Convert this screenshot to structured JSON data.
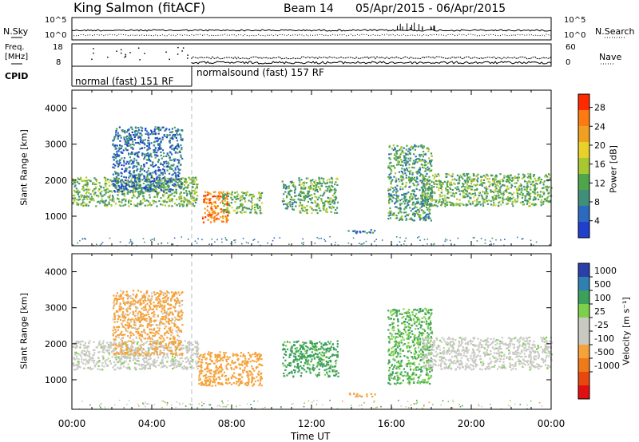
{
  "header": {
    "station": "King Salmon (fitACF)",
    "beam": "Beam 14",
    "date_range": "05/Apr/2015 - 06/Apr/2015"
  },
  "top_strip": {
    "left_label": "N.Sky",
    "right_label": "N.Search",
    "noise_ticks": [
      "10^5",
      "10^0"
    ],
    "freq_label_1": "Freq.",
    "freq_label_2": "[MHz]",
    "freq_ticks": [
      "18",
      "8"
    ],
    "nave_label": "Nave",
    "nave_ticks": [
      "60",
      "0"
    ],
    "cpid_label": "CPID",
    "cpid_modes": [
      "normal (fast) 151 RF",
      "normalsound (fast) 157 RF"
    ]
  },
  "colors": {
    "power_scale": [
      "#1f3fcc",
      "#2b6abf",
      "#3f8f7a",
      "#4fa54a",
      "#a8c832",
      "#e8d22a",
      "#f0a020",
      "#ff7a10",
      "#ff2a00"
    ],
    "velocity_scale": [
      "#2a3fa8",
      "#2f7fb0",
      "#3aa05a",
      "#7dd04a",
      "#c9c9c4",
      "#c9c9c4",
      "#f5a23a",
      "#f07a18",
      "#e84810",
      "#e01010"
    ]
  },
  "chart_data": [
    {
      "type": "heatmap",
      "panel": "power",
      "ylabel": "Slant Range [km]",
      "y_ticks": [
        1000,
        2000,
        3000,
        4000
      ],
      "ylim": [
        180,
        4500
      ],
      "x_ticks": [
        "00:00",
        "04:00",
        "08:00",
        "12:00",
        "16:00",
        "20:00",
        "00:00"
      ],
      "xlim_hours": [
        0,
        24
      ],
      "colorbar_label": "Power [dB]",
      "colorbar_ticks": [
        "4",
        "8",
        "12",
        "16",
        "20",
        "24",
        "28"
      ],
      "cpid_change_hour": 6.0,
      "echo_regions": [
        {
          "t": [
            0.0,
            6.3
          ],
          "range_km": [
            1300,
            2100
          ],
          "power_db": 12
        },
        {
          "t": [
            2.0,
            5.5
          ],
          "range_km": [
            1700,
            3500
          ],
          "power_db": 6
        },
        {
          "t": [
            6.5,
            7.8
          ],
          "range_km": [
            850,
            1700
          ],
          "power_db": 24
        },
        {
          "t": [
            7.5,
            9.5
          ],
          "range_km": [
            1100,
            1700
          ],
          "power_db": 12
        },
        {
          "t": [
            10.5,
            11.2
          ],
          "range_km": [
            1200,
            2000
          ],
          "power_db": 10
        },
        {
          "t": [
            11.3,
            13.3
          ],
          "range_km": [
            1100,
            2100
          ],
          "power_db": 12
        },
        {
          "t": [
            13.8,
            15.2
          ],
          "range_km": [
            550,
            650
          ],
          "power_db": 6
        },
        {
          "t": [
            15.8,
            18.0
          ],
          "range_km": [
            900,
            3000
          ],
          "power_db": 10
        },
        {
          "t": [
            17.5,
            24.0
          ],
          "range_km": [
            1300,
            2200
          ],
          "power_db": 12
        }
      ]
    },
    {
      "type": "heatmap",
      "panel": "velocity",
      "ylabel": "Slant Range [km]",
      "y_ticks": [
        1000,
        2000,
        3000,
        4000
      ],
      "ylim": [
        180,
        4500
      ],
      "x_ticks": [
        "00:00",
        "04:00",
        "08:00",
        "12:00",
        "16:00",
        "20:00",
        "00:00"
      ],
      "xlim_hours": [
        0,
        24
      ],
      "xlabel": "Time UT",
      "colorbar_label": "Velocity [m s⁻¹]",
      "colorbar_ticks": [
        "1000",
        "500",
        "100",
        "25",
        "-25",
        "-100",
        "-500",
        "-1000"
      ],
      "echo_regions": [
        {
          "t": [
            0.0,
            6.3
          ],
          "range_km": [
            1300,
            2100
          ],
          "velocity_ms": 0
        },
        {
          "t": [
            2.0,
            5.5
          ],
          "range_km": [
            1700,
            3500
          ],
          "velocity_ms": -150
        },
        {
          "t": [
            6.3,
            9.5
          ],
          "range_km": [
            850,
            1800
          ],
          "velocity_ms": -300
        },
        {
          "t": [
            10.5,
            13.3
          ],
          "range_km": [
            1100,
            2100
          ],
          "velocity_ms": 150
        },
        {
          "t": [
            13.8,
            15.2
          ],
          "range_km": [
            550,
            650
          ],
          "velocity_ms": -150
        },
        {
          "t": [
            15.8,
            18.0
          ],
          "range_km": [
            900,
            3000
          ],
          "velocity_ms": 100
        },
        {
          "t": [
            17.5,
            24.0
          ],
          "range_km": [
            1300,
            2200
          ],
          "velocity_ms": 0
        }
      ]
    }
  ]
}
